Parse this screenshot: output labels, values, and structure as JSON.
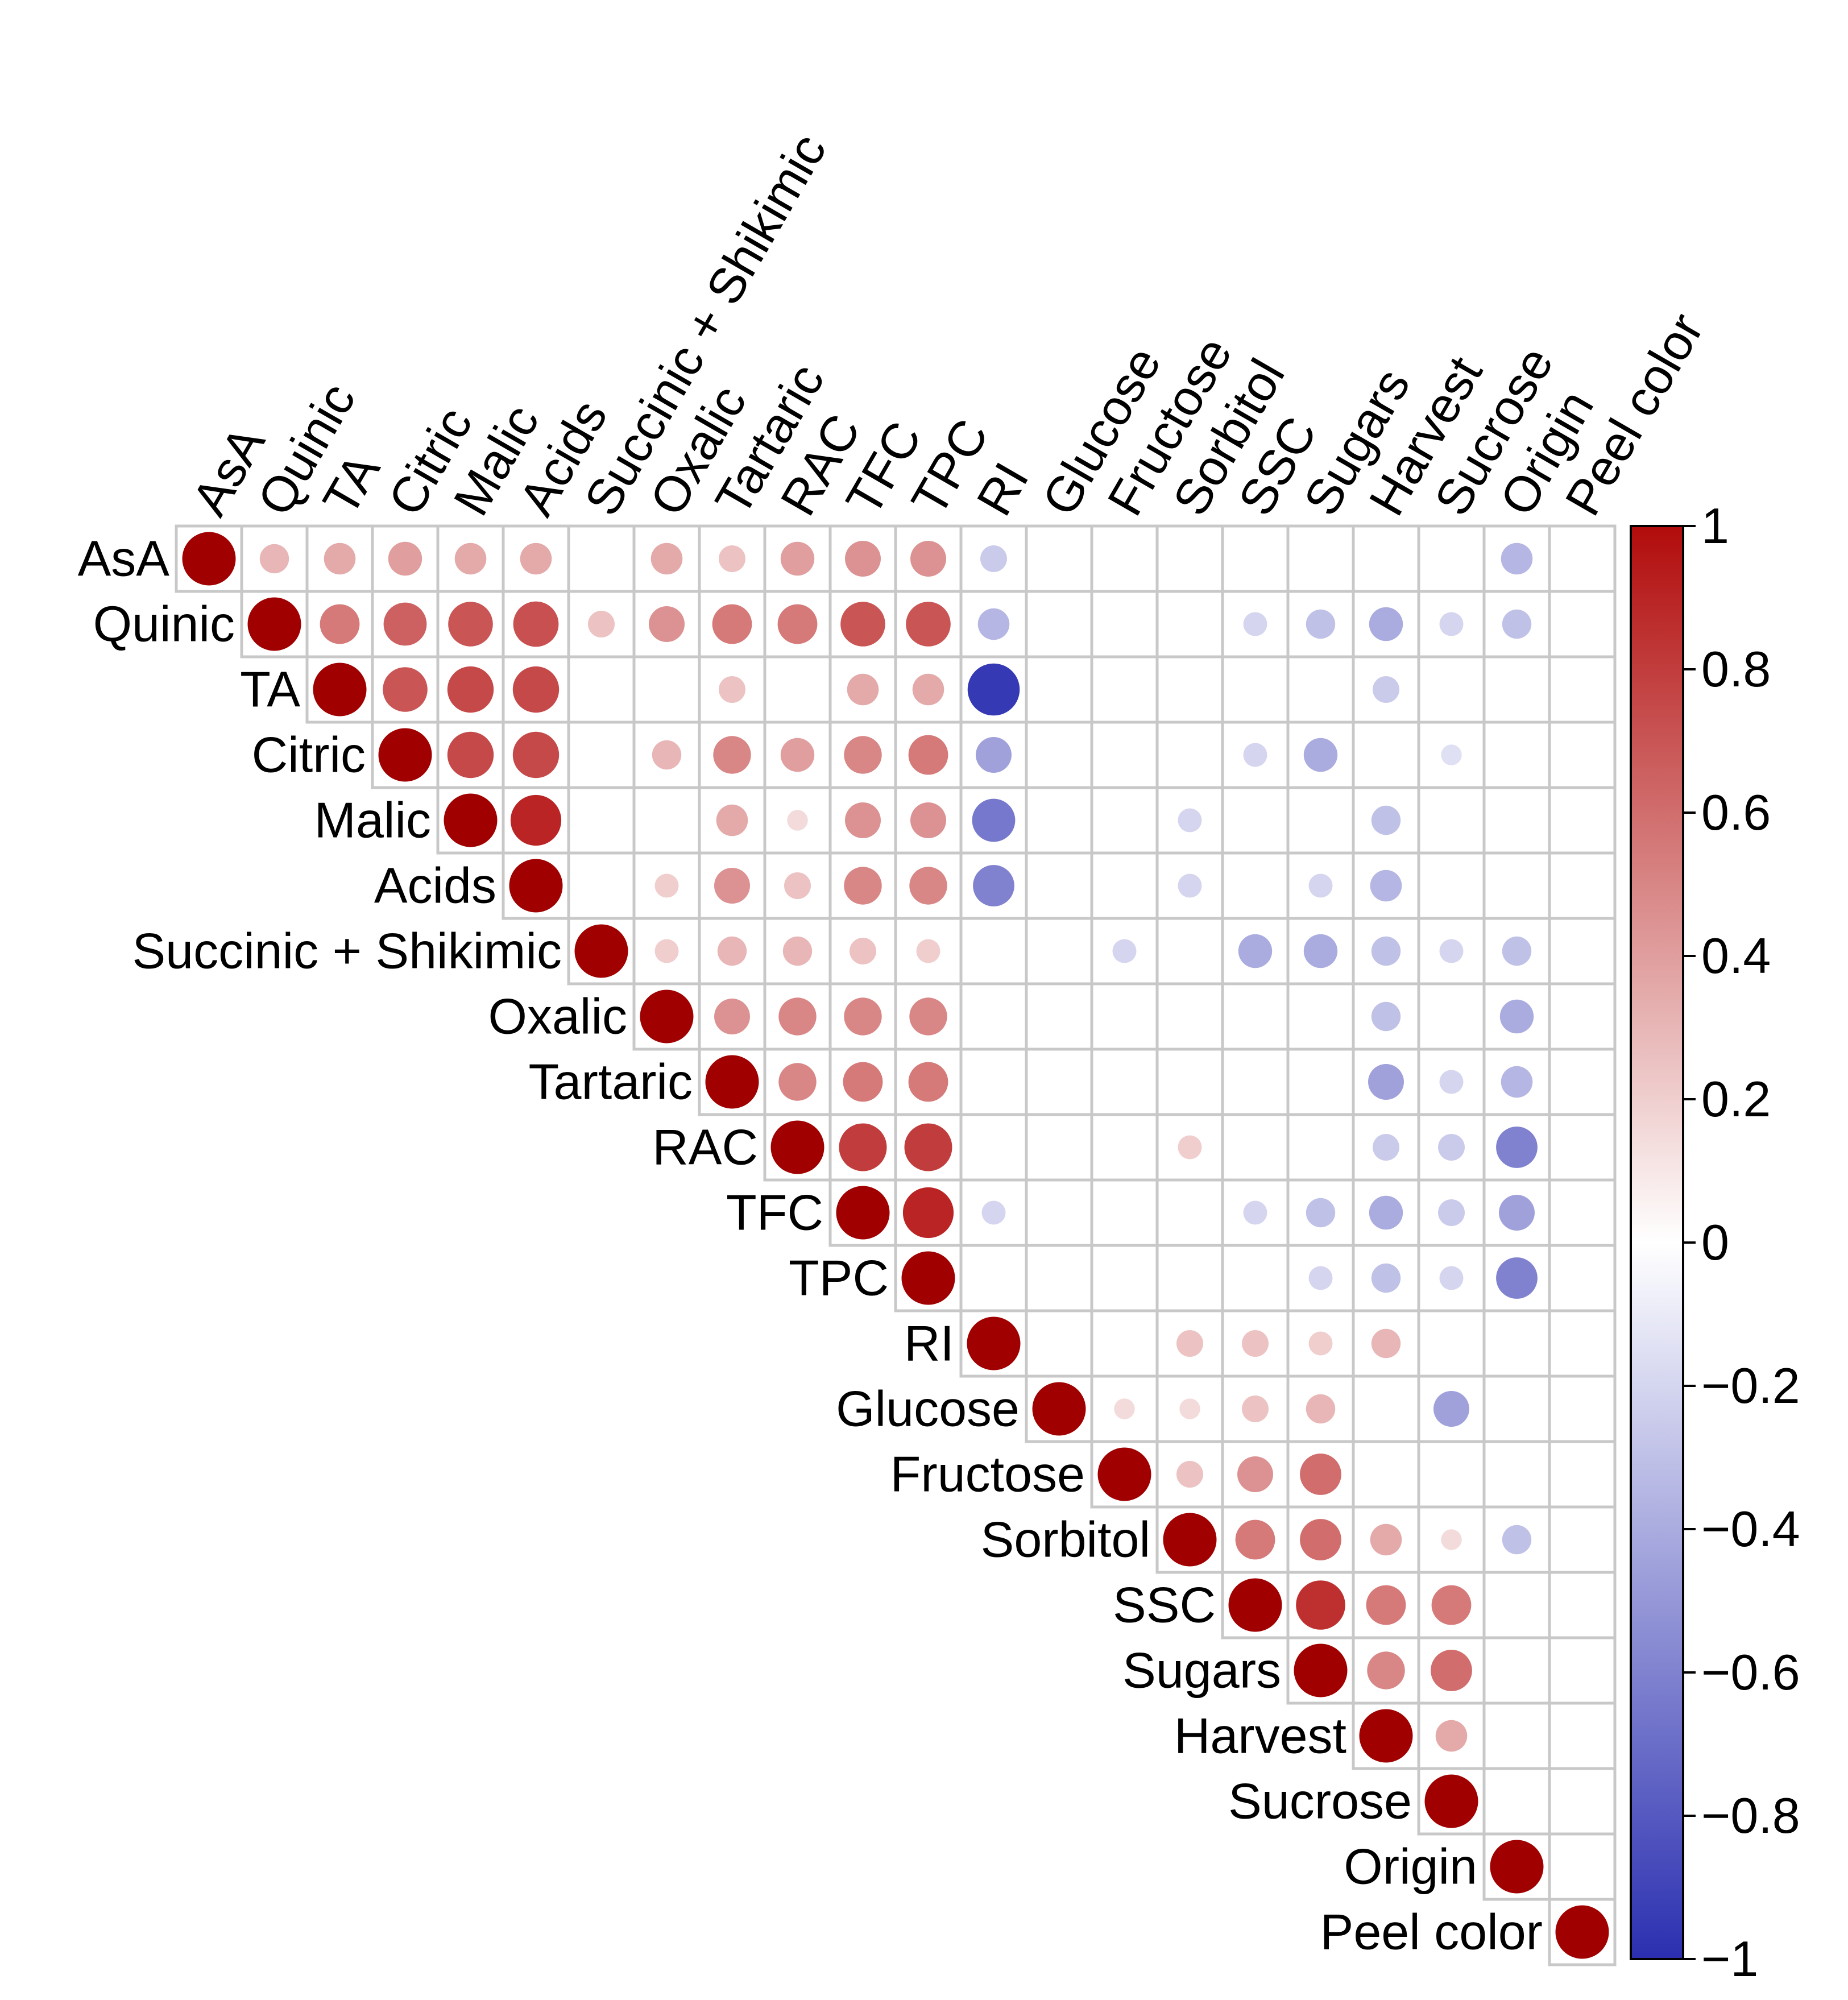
{
  "chart_data": {
    "type": "heatmap",
    "subtype": "correlation-circle-upper-triangle",
    "variables": [
      "AsA",
      "Quinic",
      "TA",
      "Citric",
      "Malic",
      "Acids",
      "Succinic + Shikimic",
      "Oxalic",
      "Tartaric",
      "RAC",
      "TFC",
      "TPC",
      "RI",
      "Glucose",
      "Fructose",
      "Sorbitol",
      "SSC",
      "Sugars",
      "Harvest",
      "Sucrose",
      "Origin",
      "Peel color"
    ],
    "colorbar": {
      "ticks": [
        "1",
        "0.8",
        "0.6",
        "0.4",
        "0.2",
        "0",
        "−0.2",
        "−0.4",
        "−0.6",
        "−0.8",
        "−1"
      ],
      "range": [
        -1,
        1
      ],
      "low_color": "#2b2fb0",
      "mid_color": "#ffffff",
      "high_color": "#b20c0c",
      "diag_color": "#a00000"
    },
    "correlations": [
      [
        1,
        0.3,
        0.35,
        0.4,
        0.35,
        0.35,
        0,
        0.35,
        0.25,
        0.4,
        0.45,
        0.45,
        -0.25,
        0,
        0,
        0,
        0,
        0,
        0,
        0,
        -0.35,
        0
      ],
      [
        null,
        1,
        0.55,
        0.65,
        0.7,
        0.72,
        0.25,
        0.45,
        0.55,
        0.55,
        0.7,
        0.7,
        -0.35,
        0,
        0,
        0,
        -0.2,
        -0.3,
        -0.4,
        -0.2,
        -0.3,
        0
      ],
      [
        null,
        null,
        1,
        0.7,
        0.75,
        0.75,
        0,
        0,
        0.25,
        0,
        0.35,
        0.35,
        -0.95,
        0,
        0,
        0,
        0,
        0,
        -0.25,
        0,
        0,
        0
      ],
      [
        null,
        null,
        null,
        1,
        0.75,
        0.75,
        0,
        0.3,
        0.5,
        0.4,
        0.5,
        0.55,
        -0.45,
        0,
        0,
        0,
        -0.2,
        -0.4,
        0,
        -0.15,
        0,
        0
      ],
      [
        null,
        null,
        null,
        null,
        1,
        0.9,
        0,
        0,
        0.35,
        0.15,
        0.45,
        0.45,
        -0.65,
        0,
        0,
        -0.2,
        0,
        0,
        -0.3,
        0,
        0,
        0
      ],
      [
        null,
        null,
        null,
        null,
        null,
        1,
        0,
        0.2,
        0.45,
        0.25,
        0.5,
        0.5,
        -0.6,
        0,
        0,
        -0.2,
        0,
        -0.2,
        -0.35,
        0,
        0,
        0
      ],
      [
        null,
        null,
        null,
        null,
        null,
        null,
        1,
        0.2,
        0.3,
        0.3,
        0.25,
        0.2,
        0,
        0,
        -0.2,
        0,
        -0.4,
        -0.4,
        -0.3,
        -0.2,
        -0.3,
        0
      ],
      [
        null,
        null,
        null,
        null,
        null,
        null,
        null,
        1,
        0.45,
        0.5,
        0.5,
        0.5,
        0,
        0,
        0,
        0,
        0,
        0,
        -0.3,
        0,
        -0.4,
        0
      ],
      [
        null,
        null,
        null,
        null,
        null,
        null,
        null,
        null,
        1,
        0.5,
        0.55,
        0.55,
        0,
        0,
        0,
        0,
        0,
        0,
        -0.45,
        -0.2,
        -0.35,
        0
      ],
      [
        null,
        null,
        null,
        null,
        null,
        null,
        null,
        null,
        null,
        1,
        0.8,
        0.8,
        0,
        0,
        0,
        0.2,
        0,
        0,
        -0.25,
        -0.25,
        -0.6,
        0
      ],
      [
        null,
        null,
        null,
        null,
        null,
        null,
        null,
        null,
        null,
        null,
        1,
        0.9,
        -0.2,
        0,
        0,
        0,
        -0.2,
        -0.3,
        -0.4,
        -0.25,
        -0.45,
        0
      ],
      [
        null,
        null,
        null,
        null,
        null,
        null,
        null,
        null,
        null,
        null,
        null,
        1,
        0,
        0,
        0,
        0,
        0,
        -0.2,
        -0.3,
        -0.2,
        -0.6,
        0
      ],
      [
        null,
        null,
        null,
        null,
        null,
        null,
        null,
        null,
        null,
        null,
        null,
        null,
        1,
        0,
        0,
        0.25,
        0.25,
        0.2,
        0.3,
        0,
        0,
        0
      ],
      [
        null,
        null,
        null,
        null,
        null,
        null,
        null,
        null,
        null,
        null,
        null,
        null,
        null,
        1,
        0.15,
        0.15,
        0.25,
        0.3,
        0,
        -0.45,
        0,
        0
      ],
      [
        null,
        null,
        null,
        null,
        null,
        null,
        null,
        null,
        null,
        null,
        null,
        null,
        null,
        null,
        1,
        0.25,
        0.45,
        0.6,
        0,
        0,
        0,
        0
      ],
      [
        null,
        null,
        null,
        null,
        null,
        null,
        null,
        null,
        null,
        null,
        null,
        null,
        null,
        null,
        null,
        1,
        0.55,
        0.6,
        0.35,
        0.15,
        -0.3,
        0
      ],
      [
        null,
        null,
        null,
        null,
        null,
        null,
        null,
        null,
        null,
        null,
        null,
        null,
        null,
        null,
        null,
        null,
        1,
        0.85,
        0.55,
        0.55,
        0,
        0
      ],
      [
        null,
        null,
        null,
        null,
        null,
        null,
        null,
        null,
        null,
        null,
        null,
        null,
        null,
        null,
        null,
        null,
        null,
        1,
        0.5,
        0.6,
        0,
        0
      ],
      [
        null,
        null,
        null,
        null,
        null,
        null,
        null,
        null,
        null,
        null,
        null,
        null,
        null,
        null,
        null,
        null,
        null,
        null,
        1,
        0.35,
        0,
        0
      ],
      [
        null,
        null,
        null,
        null,
        null,
        null,
        null,
        null,
        null,
        null,
        null,
        null,
        null,
        null,
        null,
        null,
        null,
        null,
        null,
        1,
        0,
        0
      ],
      [
        null,
        null,
        null,
        null,
        null,
        null,
        null,
        null,
        null,
        null,
        null,
        null,
        null,
        null,
        null,
        null,
        null,
        null,
        null,
        null,
        1,
        0
      ],
      [
        null,
        null,
        null,
        null,
        null,
        null,
        null,
        null,
        null,
        null,
        null,
        null,
        null,
        null,
        null,
        null,
        null,
        null,
        null,
        null,
        null,
        1
      ]
    ]
  }
}
